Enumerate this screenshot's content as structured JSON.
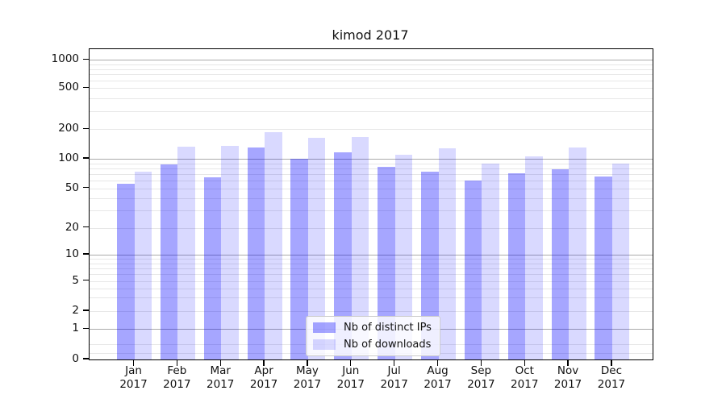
{
  "chart_data": {
    "type": "bar",
    "title": "kimod 2017",
    "yscale": "symlog",
    "ylim": [
      0,
      1400
    ],
    "yticks": [
      0,
      1,
      2,
      5,
      10,
      20,
      50,
      100,
      200,
      500,
      1000
    ],
    "grid": true,
    "legend_position": "lower center",
    "categories": [
      {
        "month": "Jan",
        "year": "2017"
      },
      {
        "month": "Feb",
        "year": "2017"
      },
      {
        "month": "Mar",
        "year": "2017"
      },
      {
        "month": "Apr",
        "year": "2017"
      },
      {
        "month": "May",
        "year": "2017"
      },
      {
        "month": "Jun",
        "year": "2017"
      },
      {
        "month": "Jul",
        "year": "2017"
      },
      {
        "month": "Aug",
        "year": "2017"
      },
      {
        "month": "Sep",
        "year": "2017"
      },
      {
        "month": "Oct",
        "year": "2017"
      },
      {
        "month": "Nov",
        "year": "2017"
      },
      {
        "month": "Dec",
        "year": "2017"
      }
    ],
    "series": [
      {
        "name": "Nb of distinct IPs",
        "color": "rgba(0,0,255,0.35)",
        "values": [
          56,
          88,
          65,
          130,
          100,
          117,
          83,
          74,
          60,
          71,
          78,
          66
        ]
      },
      {
        "name": "Nb of downloads",
        "color": "rgba(0,0,255,0.15)",
        "values": [
          74,
          132,
          135,
          188,
          162,
          168,
          110,
          128,
          89,
          106,
          130,
          89
        ]
      }
    ]
  }
}
